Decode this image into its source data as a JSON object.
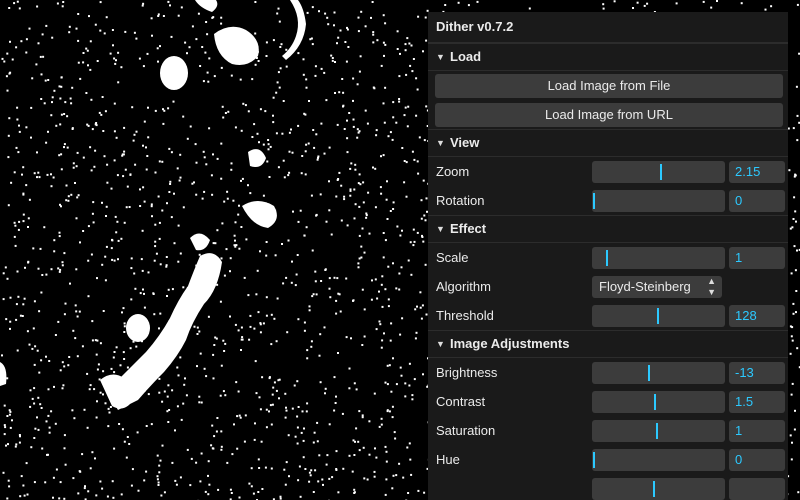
{
  "panel": {
    "title": "Dither v0.7.2",
    "folders": {
      "load": {
        "label": "Load",
        "buttons": [
          "Load Image from File",
          "Load Image from URL"
        ]
      },
      "view": {
        "label": "View"
      },
      "effect": {
        "label": "Effect"
      },
      "adjust": {
        "label": "Image Adjustments"
      }
    },
    "controls": {
      "zoom": {
        "label": "Zoom",
        "value": "2.15",
        "fraction": 0.52
      },
      "rotation": {
        "label": "Rotation",
        "value": "0",
        "fraction": 0.0
      },
      "scale": {
        "label": "Scale",
        "value": "1",
        "fraction": 0.11
      },
      "algorithm": {
        "label": "Algorithm",
        "value": "Floyd-Steinberg"
      },
      "threshold": {
        "label": "Threshold",
        "value": "128",
        "fraction": 0.5
      },
      "brightness": {
        "label": "Brightness",
        "value": "-13",
        "fraction": 0.43
      },
      "contrast": {
        "label": "Contrast",
        "value": "1.5",
        "fraction": 0.48
      },
      "saturation": {
        "label": "Saturation",
        "value": "1",
        "fraction": 0.49
      },
      "hue": {
        "label": "Hue",
        "value": "0",
        "fraction": 0.0
      },
      "extra": {
        "fraction": 0.47
      }
    }
  },
  "colors": {
    "accent": "#2cc9ff",
    "panel_bg": "#1a1a1a",
    "control_bg": "#3c3c3c"
  }
}
